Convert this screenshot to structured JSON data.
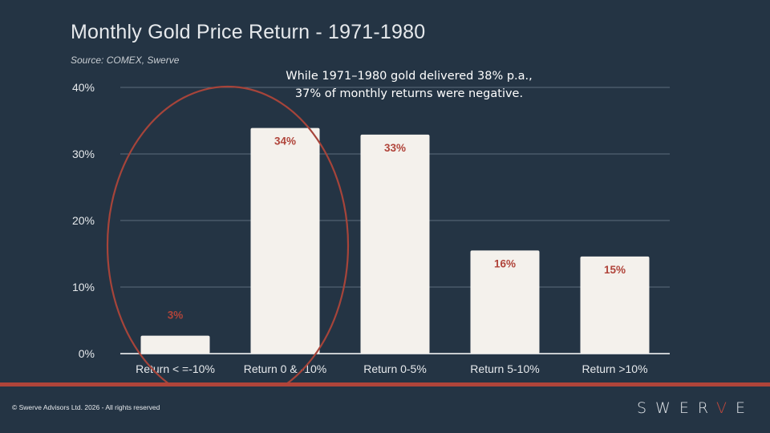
{
  "title": "Monthly Gold Price Return - 1971-1980",
  "subtitle": "Source: COMEX, Swerve",
  "annotation": {
    "line1": "While 1971–1980 gold delivered 38% p.a.,",
    "line2": "37% of monthly returns were negative."
  },
  "footer": {
    "copyright": "© Swerve Advisors Ltd. 2026 - All rights reserved",
    "brand_prefix": "SWER",
    "brand_accent": "V",
    "brand_suffix": "E"
  },
  "colors": {
    "background": "#243444",
    "bar": "#f4f1ec",
    "data_label": "#b0443a",
    "highlight_ellipse": "#a6443a",
    "gridline": "#5d6d7c",
    "axis_text": "#e6e9ec"
  },
  "chart_data": {
    "type": "bar",
    "categories": [
      "Return < =-10%",
      "Return 0 & -10%",
      "Return 0-5%",
      "Return 5-10%",
      "Return >10%"
    ],
    "values": [
      2.7,
      33.9,
      32.9,
      15.5,
      14.6
    ],
    "data_labels": [
      "3%",
      "34%",
      "33%",
      "16%",
      "15%"
    ],
    "ylim": [
      0,
      40
    ],
    "yticks": [
      "0%",
      "10%",
      "20%",
      "30%",
      "40%"
    ],
    "grid": true,
    "highlighted_categories": [
      "Return < =-10%",
      "Return 0 & -10%"
    ]
  }
}
